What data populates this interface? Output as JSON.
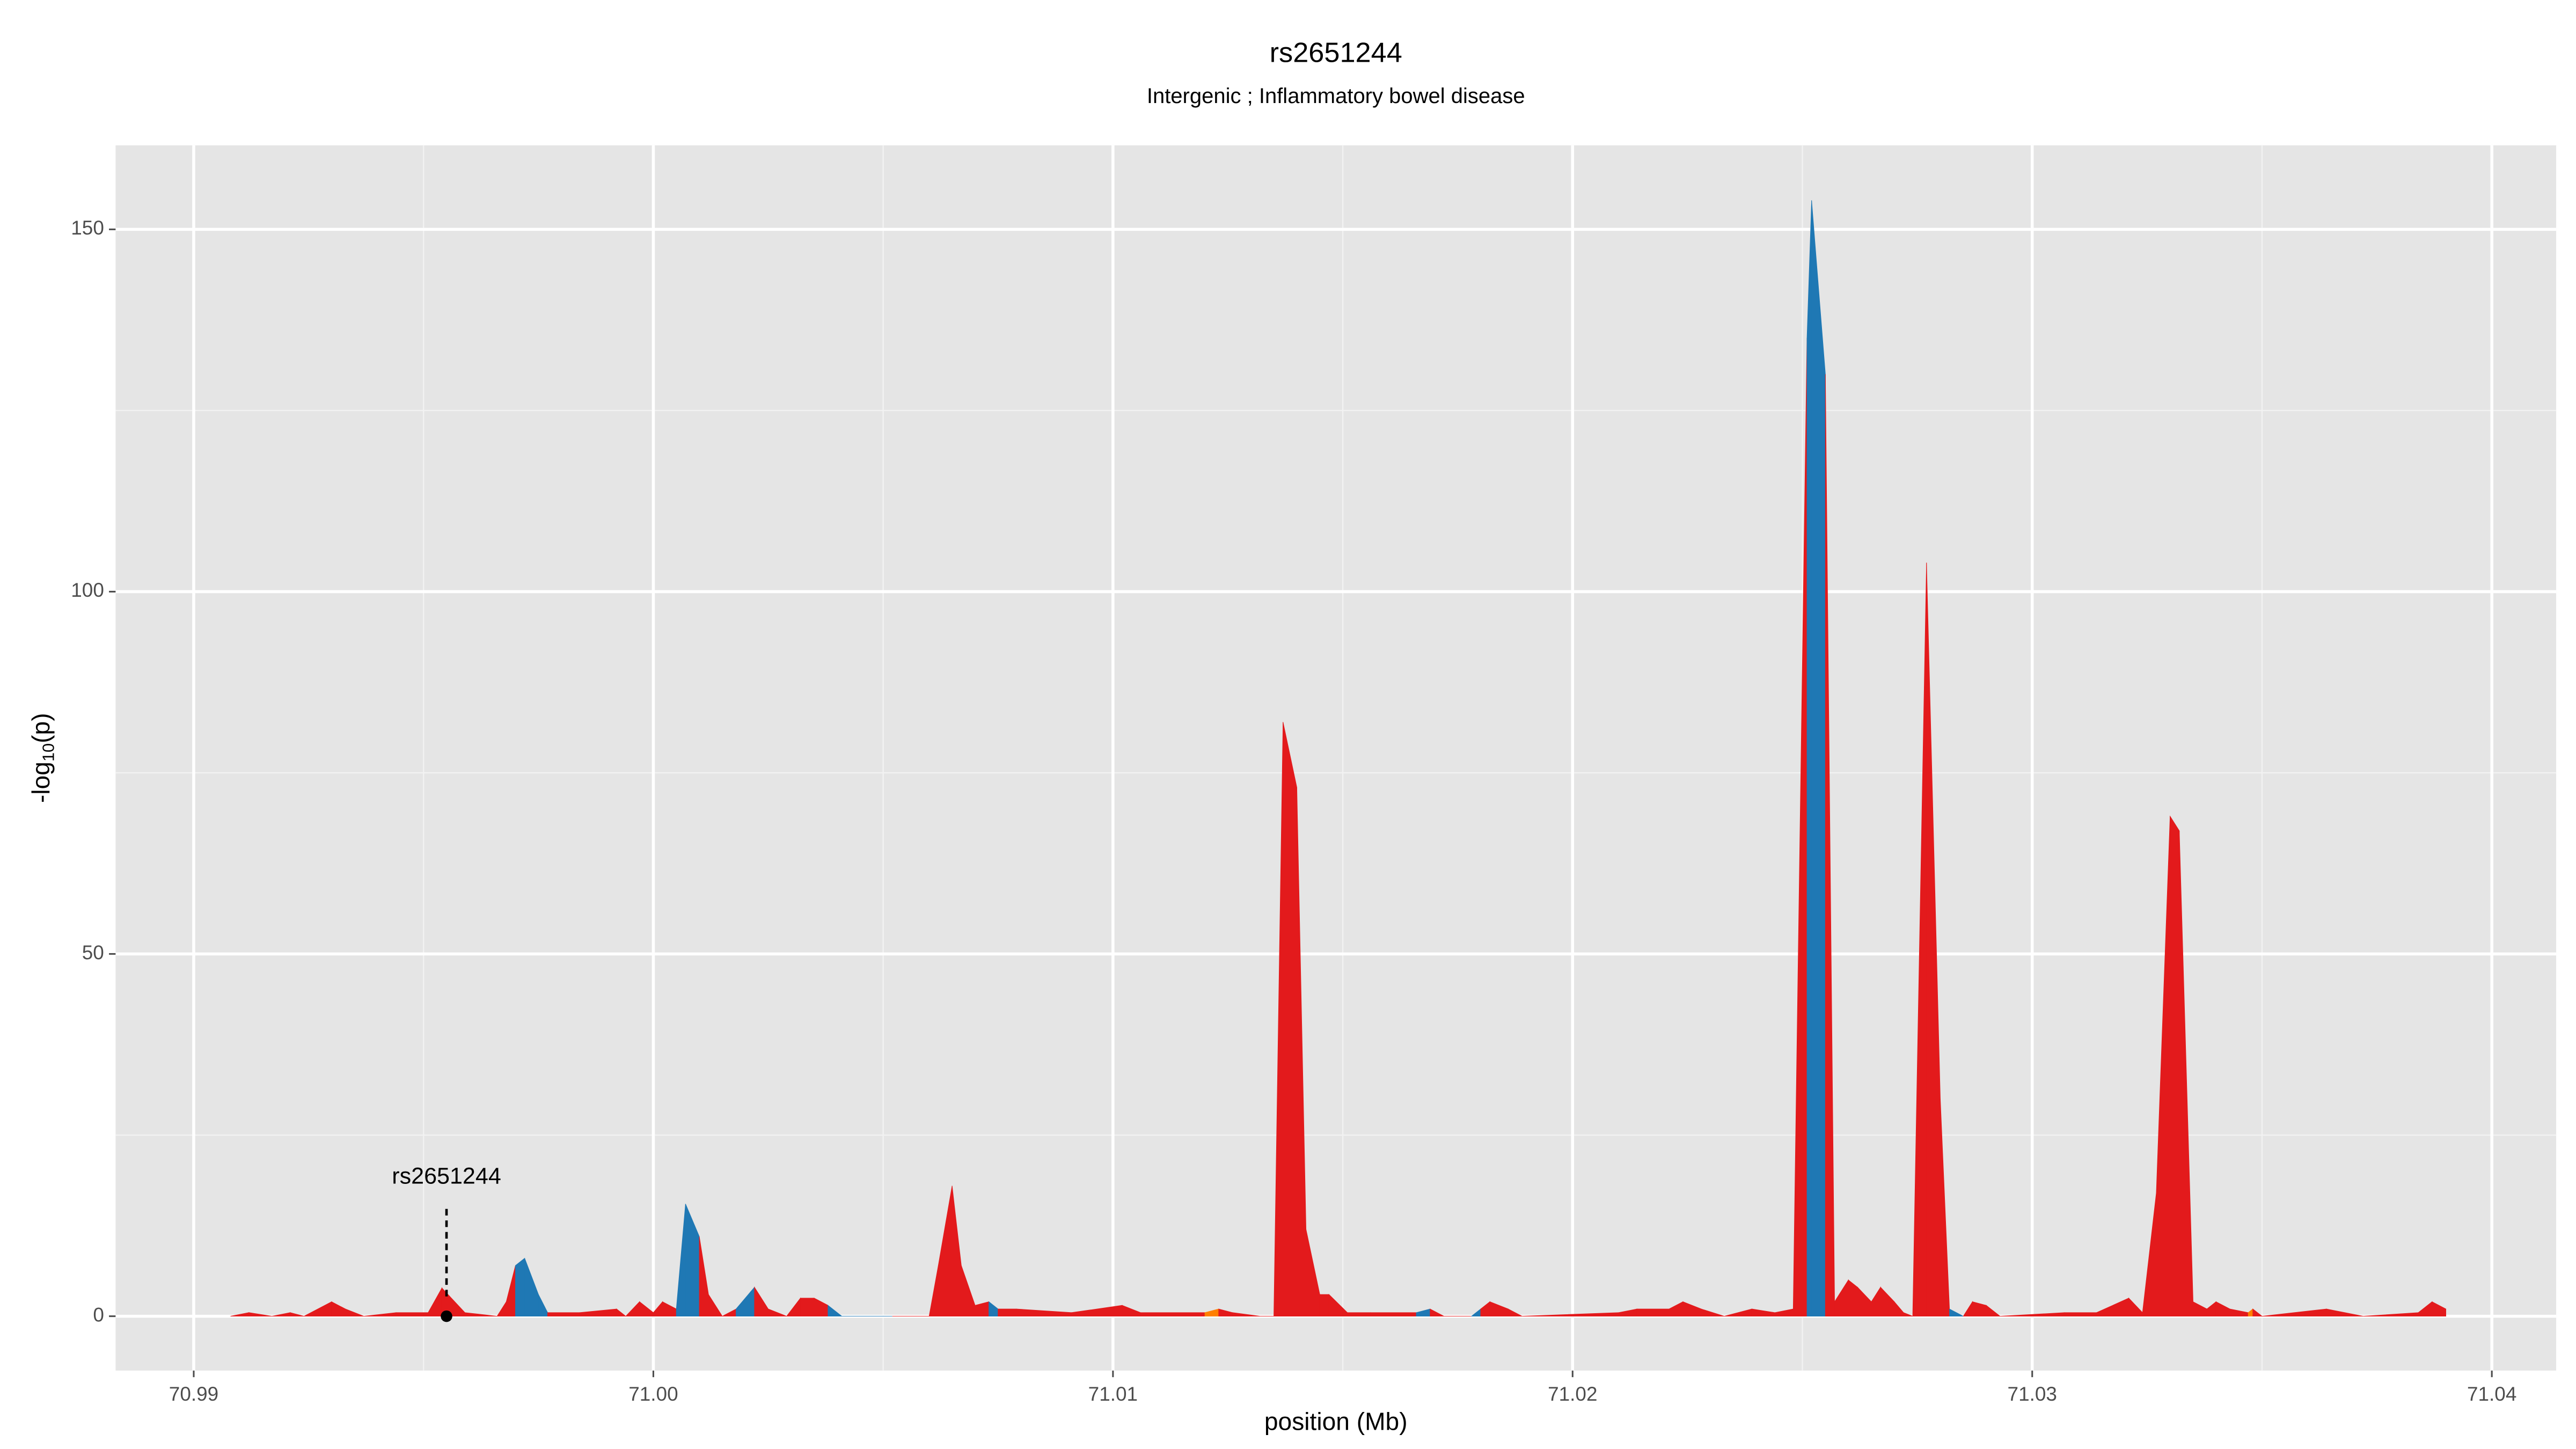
{
  "chart_data": {
    "type": "area",
    "title": "rs2651244",
    "subtitle": "Intergenic ; Inflammatory bowel disease",
    "x_label": "position (Mb)",
    "y_label": {
      "text": "-log",
      "subscript": "10",
      "suffix": "(p)"
    },
    "x": [
      70.9908,
      70.9912,
      70.9917,
      70.9921,
      70.9924,
      70.993,
      70.9933,
      70.9937,
      70.9944,
      70.9951,
      70.9954,
      70.9959,
      70.9966,
      70.9968,
      70.997,
      70.9972,
      70.9975,
      70.9977,
      70.9984,
      70.9992,
      70.9994,
      70.9997,
      71.0,
      71.0002,
      71.0005,
      71.0007,
      71.001,
      71.0012,
      71.0015,
      71.0018,
      71.0022,
      71.0025,
      71.0029,
      71.0032,
      71.0035,
      71.0038,
      71.0041,
      71.0052,
      71.006,
      71.0062,
      71.0065,
      71.0067,
      71.007,
      71.0073,
      71.0075,
      71.0079,
      71.0091,
      71.0102,
      71.0106,
      71.012,
      71.0123,
      71.0126,
      71.0132,
      71.0135,
      71.0137,
      71.014,
      71.0142,
      71.0145,
      71.0147,
      71.0151,
      71.0156,
      71.0166,
      71.0169,
      71.0172,
      71.0178,
      71.018,
      71.0182,
      71.0186,
      71.0189,
      71.021,
      71.0214,
      71.0221,
      71.0224,
      71.0228,
      71.0233,
      71.0239,
      71.0244,
      71.0248,
      71.0251,
      71.0252,
      71.0255,
      71.0257,
      71.026,
      71.0262,
      71.0265,
      71.0267,
      71.027,
      71.0272,
      71.0274,
      71.0277,
      71.028,
      71.0282,
      71.0285,
      71.0287,
      71.029,
      71.0293,
      71.0307,
      71.0314,
      71.0321,
      71.0324,
      71.0327,
      71.033,
      71.0332,
      71.0335,
      71.0338,
      71.034,
      71.0343,
      71.0347,
      71.0348,
      71.035,
      71.0364,
      71.0372,
      71.0384,
      71.0387,
      71.039
    ],
    "values": [
      0,
      0.5,
      0,
      0.5,
      0,
      2,
      1,
      0,
      0.5,
      0.5,
      3.9,
      0.5,
      0,
      2,
      7,
      8,
      3,
      0.5,
      0.5,
      1,
      0,
      2,
      0.5,
      2,
      1,
      15.5,
      11,
      3,
      0,
      1,
      4,
      1,
      0,
      2.5,
      2.5,
      1.5,
      0,
      0,
      0,
      7,
      18,
      7,
      1.5,
      2,
      1,
      1,
      0.5,
      1.5,
      0.5,
      0.5,
      1,
      0.5,
      0,
      0,
      82,
      73,
      12,
      3,
      3,
      0.5,
      0.5,
      0.5,
      1,
      0,
      0,
      1,
      2,
      1,
      0,
      0.5,
      1,
      1,
      2,
      1,
      0,
      1,
      0.5,
      1,
      135,
      154,
      130,
      2,
      5,
      4,
      2,
      4,
      2,
      0.5,
      0,
      104,
      30,
      1,
      0,
      2,
      1.5,
      0,
      0.5,
      0.5,
      2.5,
      0.5,
      17,
      69,
      67,
      2,
      1,
      2,
      1,
      0.5,
      1,
      0,
      1,
      0,
      0.5,
      2,
      1
    ],
    "colors": [
      "#e31a1c",
      "#e31a1c",
      "#e31a1c",
      "#e31a1c",
      "#e31a1c",
      "#e31a1c",
      "#e31a1c",
      "#e31a1c",
      "#e31a1c",
      "#e31a1c",
      "#e31a1c",
      "#e31a1c",
      "#e31a1c",
      "#e31a1c",
      "#1f78b4",
      "#1f78b4",
      "#1f78b4",
      "#e31a1c",
      "#e31a1c",
      "#e31a1c",
      "#e31a1c",
      "#e31a1c",
      "#e31a1c",
      "#e31a1c",
      "#1f78b4",
      "#1f78b4",
      "#e31a1c",
      "#e31a1c",
      "#e31a1c",
      "#1f78b4",
      "#e31a1c",
      "#e31a1c",
      "#e31a1c",
      "#e31a1c",
      "#e31a1c",
      "#1f78b4",
      "#1f78b4",
      "#e31a1c",
      "#e31a1c",
      "#e31a1c",
      "#e31a1c",
      "#e31a1c",
      "#e31a1c",
      "#1f78b4",
      "#e31a1c",
      "#e31a1c",
      "#e31a1c",
      "#e31a1c",
      "#e31a1c",
      "#ff7f00",
      "#e31a1c",
      "#e31a1c",
      "#e31a1c",
      "#e31a1c",
      "#e31a1c",
      "#e31a1c",
      "#e31a1c",
      "#e31a1c",
      "#e31a1c",
      "#e31a1c",
      "#e31a1c",
      "#1f78b4",
      "#e31a1c",
      "#e31a1c",
      "#1f78b4",
      "#e31a1c",
      "#e31a1c",
      "#e31a1c",
      "#e31a1c",
      "#e31a1c",
      "#e31a1c",
      "#e31a1c",
      "#e31a1c",
      "#e31a1c",
      "#e31a1c",
      "#e31a1c",
      "#e31a1c",
      "#e31a1c",
      "#1f78b4",
      "#1f78b4",
      "#e31a1c",
      "#e31a1c",
      "#e31a1c",
      "#e31a1c",
      "#e31a1c",
      "#e31a1c",
      "#e31a1c",
      "#e31a1c",
      "#e31a1c",
      "#e31a1c",
      "#e31a1c",
      "#1f78b4",
      "#e31a1c",
      "#e31a1c",
      "#e31a1c",
      "#e31a1c",
      "#e31a1c",
      "#e31a1c",
      "#e31a1c",
      "#e31a1c",
      "#e31a1c",
      "#e31a1c",
      "#e31a1c",
      "#e31a1c",
      "#e31a1c",
      "#e31a1c",
      "#e31a1c",
      "#ff7f00",
      "#e31a1c",
      "#e31a1c",
      "#e31a1c",
      "#e31a1c",
      "#e31a1c",
      "#e31a1c",
      "#e31a1c"
    ],
    "annotation": {
      "label": "rs2651244",
      "x": 70.9955,
      "y": 0
    },
    "xlim": [
      70.9883,
      71.0414
    ],
    "ylim": [
      -7.5,
      161.6
    ],
    "xticks": [
      70.99,
      {
        "value": 71,
        "label": "71.00"
      },
      71.01,
      71.02,
      71.03,
      71.04
    ],
    "yticks": [
      0,
      50,
      100,
      150
    ],
    "grid": true
  }
}
